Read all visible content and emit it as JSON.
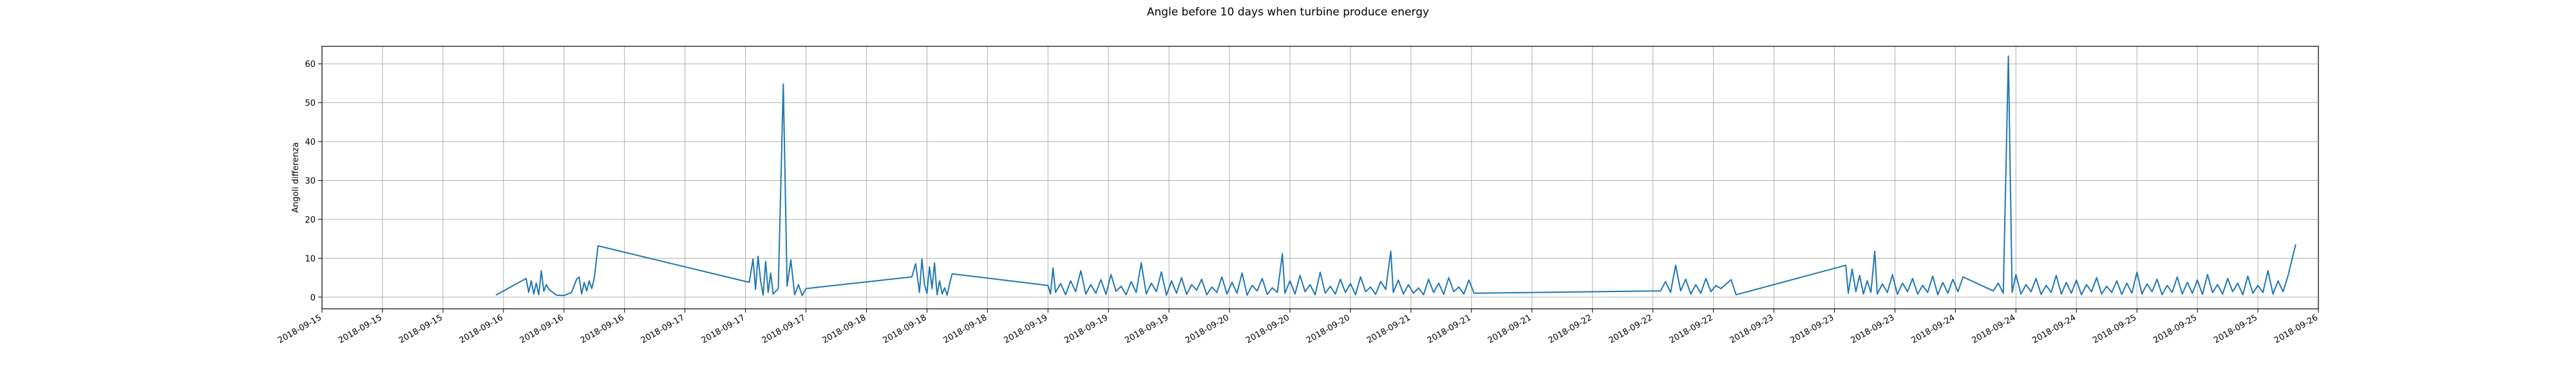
{
  "chart_data": {
    "type": "line",
    "title": "Angle before 10 days when turbine produce energy",
    "xlabel": "",
    "ylabel": "Angoli differenza",
    "ylim": [
      -3,
      64.5
    ],
    "yticks": [
      0,
      10,
      20,
      30,
      40,
      50,
      60
    ],
    "xlim": [
      "2018-09-15 00:00",
      "2018-09-26 00:00"
    ],
    "xtick_labels": [
      "2018-09-15",
      "2018-09-15",
      "2018-09-15",
      "2018-09-16",
      "2018-09-16",
      "2018-09-16",
      "2018-09-17",
      "2018-09-17",
      "2018-09-17",
      "2018-09-18",
      "2018-09-18",
      "2018-09-18",
      "2018-09-19",
      "2018-09-19",
      "2018-09-19",
      "2018-09-20",
      "2018-09-20",
      "2018-09-20",
      "2018-09-21",
      "2018-09-21",
      "2018-09-21",
      "2018-09-22",
      "2018-09-22",
      "2018-09-22",
      "2018-09-23",
      "2018-09-23",
      "2018-09-23",
      "2018-09-24",
      "2018-09-24",
      "2018-09-24",
      "2018-09-25",
      "2018-09-25",
      "2018-09-25",
      "2018-09-26"
    ],
    "grid": true,
    "line_color": "#1f77b4",
    "series": [
      {
        "name": "",
        "points": [
          [
            "2018-09-15 23:00",
            0.5
          ],
          [
            "2018-09-16 03:00",
            4.8
          ],
          [
            "2018-09-16 03:20",
            1.2
          ],
          [
            "2018-09-16 03:40",
            4.2
          ],
          [
            "2018-09-16 04:00",
            0.8
          ],
          [
            "2018-09-16 04:20",
            3.6
          ],
          [
            "2018-09-16 04:40",
            0.6
          ],
          [
            "2018-09-16 05:00",
            6.8
          ],
          [
            "2018-09-16 05:20",
            1.5
          ],
          [
            "2018-09-16 05:40",
            3.2
          ],
          [
            "2018-09-16 06:00",
            2.0
          ],
          [
            "2018-09-16 07:00",
            0.5
          ],
          [
            "2018-09-16 08:00",
            0.4
          ],
          [
            "2018-09-16 09:00",
            1.2
          ],
          [
            "2018-09-16 09:40",
            4.6
          ],
          [
            "2018-09-16 10:00",
            5.2
          ],
          [
            "2018-09-16 10:20",
            0.8
          ],
          [
            "2018-09-16 10:40",
            3.8
          ],
          [
            "2018-09-16 11:00",
            1.6
          ],
          [
            "2018-09-16 11:20",
            4.2
          ],
          [
            "2018-09-16 11:40",
            2.2
          ],
          [
            "2018-09-16 12:00",
            4.8
          ],
          [
            "2018-09-16 12:30",
            13.2
          ],
          [
            "2018-09-17 08:30",
            3.8
          ],
          [
            "2018-09-17 09:00",
            9.8
          ],
          [
            "2018-09-17 09:20",
            2.0
          ],
          [
            "2018-09-17 09:40",
            10.5
          ],
          [
            "2018-09-17 10:00",
            4.2
          ],
          [
            "2018-09-17 10:20",
            0.5
          ],
          [
            "2018-09-17 10:40",
            9.2
          ],
          [
            "2018-09-17 11:00",
            1.2
          ],
          [
            "2018-09-17 11:20",
            6.2
          ],
          [
            "2018-09-17 11:40",
            0.8
          ],
          [
            "2018-09-17 12:20",
            2.2
          ],
          [
            "2018-09-17 13:00",
            54.8
          ],
          [
            "2018-09-17 13:30",
            2.8
          ],
          [
            "2018-09-17 14:00",
            9.6
          ],
          [
            "2018-09-17 14:30",
            0.6
          ],
          [
            "2018-09-17 15:00",
            3.2
          ],
          [
            "2018-09-17 15:30",
            0.4
          ],
          [
            "2018-09-17 16:00",
            2.2
          ],
          [
            "2018-09-18 06:00",
            5.2
          ],
          [
            "2018-09-18 06:30",
            8.6
          ],
          [
            "2018-09-18 07:00",
            1.2
          ],
          [
            "2018-09-18 07:20",
            9.8
          ],
          [
            "2018-09-18 07:40",
            3.2
          ],
          [
            "2018-09-18 08:00",
            1.0
          ],
          [
            "2018-09-18 08:20",
            7.8
          ],
          [
            "2018-09-18 08:40",
            2.2
          ],
          [
            "2018-09-18 09:00",
            8.8
          ],
          [
            "2018-09-18 09:20",
            0.6
          ],
          [
            "2018-09-18 09:40",
            4.2
          ],
          [
            "2018-09-18 10:00",
            0.8
          ],
          [
            "2018-09-18 10:20",
            2.4
          ],
          [
            "2018-09-18 10:40",
            0.5
          ],
          [
            "2018-09-18 11:00",
            3.5
          ],
          [
            "2018-09-18 11:20",
            6.0
          ],
          [
            "2018-09-19 00:00",
            3.0
          ],
          [
            "2018-09-19 00:20",
            0.8
          ],
          [
            "2018-09-19 00:40",
            7.5
          ],
          [
            "2018-09-19 01:00",
            1.2
          ],
          [
            "2018-09-19 01:40",
            3.5
          ],
          [
            "2018-09-19 02:20",
            0.6
          ],
          [
            "2018-09-19 03:00",
            4.2
          ],
          [
            "2018-09-19 03:40",
            1.4
          ],
          [
            "2018-09-19 04:20",
            6.8
          ],
          [
            "2018-09-19 05:00",
            0.8
          ],
          [
            "2018-09-19 05:40",
            3.2
          ],
          [
            "2018-09-19 06:20",
            1.0
          ],
          [
            "2018-09-19 07:00",
            4.5
          ],
          [
            "2018-09-19 07:40",
            0.7
          ],
          [
            "2018-09-19 08:20",
            5.8
          ],
          [
            "2018-09-19 09:00",
            1.5
          ],
          [
            "2018-09-19 09:40",
            2.8
          ],
          [
            "2018-09-19 10:20",
            0.6
          ],
          [
            "2018-09-19 11:00",
            4.0
          ],
          [
            "2018-09-19 11:40",
            1.2
          ],
          [
            "2018-09-19 12:20",
            8.8
          ],
          [
            "2018-09-19 13:00",
            0.8
          ],
          [
            "2018-09-19 13:40",
            3.6
          ],
          [
            "2018-09-19 14:20",
            1.4
          ],
          [
            "2018-09-19 15:00",
            6.5
          ],
          [
            "2018-09-19 15:40",
            0.5
          ],
          [
            "2018-09-19 16:20",
            4.2
          ],
          [
            "2018-09-19 17:00",
            1.0
          ],
          [
            "2018-09-19 17:40",
            5.0
          ],
          [
            "2018-09-19 18:20",
            0.7
          ],
          [
            "2018-09-19 19:00",
            3.2
          ],
          [
            "2018-09-19 19:40",
            1.8
          ],
          [
            "2018-09-19 20:20",
            4.6
          ],
          [
            "2018-09-19 21:00",
            0.6
          ],
          [
            "2018-09-19 21:40",
            2.6
          ],
          [
            "2018-09-19 22:20",
            1.2
          ],
          [
            "2018-09-19 23:00",
            5.2
          ],
          [
            "2018-09-19 23:40",
            0.8
          ],
          [
            "2018-09-20 00:20",
            3.8
          ],
          [
            "2018-09-20 01:00",
            1.0
          ],
          [
            "2018-09-20 01:40",
            6.2
          ],
          [
            "2018-09-20 02:20",
            0.5
          ],
          [
            "2018-09-20 03:00",
            3.0
          ],
          [
            "2018-09-20 03:40",
            1.6
          ],
          [
            "2018-09-20 04:20",
            4.8
          ],
          [
            "2018-09-20 05:00",
            0.7
          ],
          [
            "2018-09-20 05:40",
            2.4
          ],
          [
            "2018-09-20 06:20",
            1.2
          ],
          [
            "2018-09-20 07:00",
            11.2
          ],
          [
            "2018-09-20 07:20",
            1.0
          ],
          [
            "2018-09-20 08:00",
            4.2
          ],
          [
            "2018-09-20 08:40",
            0.8
          ],
          [
            "2018-09-20 09:20",
            5.6
          ],
          [
            "2018-09-20 10:00",
            1.4
          ],
          [
            "2018-09-20 10:40",
            3.2
          ],
          [
            "2018-09-20 11:20",
            0.6
          ],
          [
            "2018-09-20 12:00",
            6.4
          ],
          [
            "2018-09-20 12:40",
            1.0
          ],
          [
            "2018-09-20 13:20",
            2.8
          ],
          [
            "2018-09-20 14:00",
            0.8
          ],
          [
            "2018-09-20 14:40",
            4.6
          ],
          [
            "2018-09-20 15:20",
            1.2
          ],
          [
            "2018-09-20 16:00",
            3.5
          ],
          [
            "2018-09-20 16:40",
            0.6
          ],
          [
            "2018-09-20 17:20",
            5.2
          ],
          [
            "2018-09-20 18:00",
            1.4
          ],
          [
            "2018-09-20 18:40",
            2.6
          ],
          [
            "2018-09-20 19:20",
            0.7
          ],
          [
            "2018-09-20 20:00",
            4.0
          ],
          [
            "2018-09-20 20:40",
            2.0
          ],
          [
            "2018-09-20 21:20",
            11.8
          ],
          [
            "2018-09-20 21:40",
            1.2
          ],
          [
            "2018-09-20 22:20",
            4.4
          ],
          [
            "2018-09-20 23:00",
            0.8
          ],
          [
            "2018-09-20 23:40",
            3.2
          ],
          [
            "2018-09-21 00:20",
            1.0
          ],
          [
            "2018-09-21 01:00",
            2.4
          ],
          [
            "2018-09-21 01:40",
            0.6
          ],
          [
            "2018-09-21 02:20",
            4.6
          ],
          [
            "2018-09-21 03:00",
            1.2
          ],
          [
            "2018-09-21 03:40",
            3.6
          ],
          [
            "2018-09-21 04:20",
            0.7
          ],
          [
            "2018-09-21 05:00",
            5.0
          ],
          [
            "2018-09-21 05:40",
            1.4
          ],
          [
            "2018-09-21 06:20",
            2.6
          ],
          [
            "2018-09-21 07:00",
            0.8
          ],
          [
            "2018-09-21 07:40",
            4.4
          ],
          [
            "2018-09-21 08:20",
            1.0
          ],
          [
            "2018-09-22 09:00",
            1.6
          ],
          [
            "2018-09-22 09:40",
            4.0
          ],
          [
            "2018-09-22 10:20",
            1.2
          ],
          [
            "2018-09-22 11:00",
            8.2
          ],
          [
            "2018-09-22 11:40",
            1.6
          ],
          [
            "2018-09-22 12:20",
            4.6
          ],
          [
            "2018-09-22 13:00",
            0.8
          ],
          [
            "2018-09-22 13:40",
            3.2
          ],
          [
            "2018-09-22 14:20",
            1.0
          ],
          [
            "2018-09-22 15:00",
            4.8
          ],
          [
            "2018-09-22 15:40",
            1.4
          ],
          [
            "2018-09-22 16:20",
            3.0
          ],
          [
            "2018-09-22 17:00",
            2.2
          ],
          [
            "2018-09-22 18:20",
            4.5
          ],
          [
            "2018-09-22 19:00",
            0.6
          ],
          [
            "2018-09-23 09:30",
            8.2
          ],
          [
            "2018-09-23 09:50",
            1.0
          ],
          [
            "2018-09-23 10:20",
            7.2
          ],
          [
            "2018-09-23 10:50",
            1.4
          ],
          [
            "2018-09-23 11:20",
            5.6
          ],
          [
            "2018-09-23 11:50",
            0.8
          ],
          [
            "2018-09-23 12:20",
            4.2
          ],
          [
            "2018-09-23 12:50",
            1.2
          ],
          [
            "2018-09-23 13:20",
            11.8
          ],
          [
            "2018-09-23 13:40",
            0.8
          ],
          [
            "2018-09-23 14:20",
            3.4
          ],
          [
            "2018-09-23 15:00",
            1.2
          ],
          [
            "2018-09-23 15:40",
            5.8
          ],
          [
            "2018-09-23 16:20",
            0.7
          ],
          [
            "2018-09-23 17:00",
            3.6
          ],
          [
            "2018-09-23 17:40",
            1.4
          ],
          [
            "2018-09-23 18:20",
            4.8
          ],
          [
            "2018-09-23 19:00",
            0.8
          ],
          [
            "2018-09-23 19:40",
            3.0
          ],
          [
            "2018-09-23 20:20",
            1.2
          ],
          [
            "2018-09-23 21:00",
            5.4
          ],
          [
            "2018-09-23 21:40",
            0.6
          ],
          [
            "2018-09-23 22:20",
            3.8
          ],
          [
            "2018-09-23 23:00",
            1.0
          ],
          [
            "2018-09-23 23:40",
            4.6
          ],
          [
            "2018-09-24 00:20",
            1.4
          ],
          [
            "2018-09-24 01:00",
            5.2
          ],
          [
            "2018-09-24 05:00",
            1.6
          ],
          [
            "2018-09-24 05:40",
            3.6
          ],
          [
            "2018-09-24 06:20",
            1.0
          ],
          [
            "2018-09-24 07:00",
            62.0
          ],
          [
            "2018-09-24 07:30",
            1.2
          ],
          [
            "2018-09-24 08:00",
            5.8
          ],
          [
            "2018-09-24 08:40",
            0.8
          ],
          [
            "2018-09-24 09:20",
            3.2
          ],
          [
            "2018-09-24 10:00",
            1.4
          ],
          [
            "2018-09-24 10:40",
            4.8
          ],
          [
            "2018-09-24 11:20",
            0.7
          ],
          [
            "2018-09-24 12:00",
            3.0
          ],
          [
            "2018-09-24 12:40",
            1.2
          ],
          [
            "2018-09-24 13:20",
            5.6
          ],
          [
            "2018-09-24 14:00",
            0.8
          ],
          [
            "2018-09-24 14:40",
            3.8
          ],
          [
            "2018-09-24 15:20",
            1.0
          ],
          [
            "2018-09-24 16:00",
            4.4
          ],
          [
            "2018-09-24 16:40",
            0.6
          ],
          [
            "2018-09-24 17:20",
            3.2
          ],
          [
            "2018-09-24 18:00",
            1.4
          ],
          [
            "2018-09-24 18:40",
            5.0
          ],
          [
            "2018-09-24 19:20",
            0.8
          ],
          [
            "2018-09-24 20:00",
            2.8
          ],
          [
            "2018-09-24 20:40",
            1.2
          ],
          [
            "2018-09-24 21:20",
            4.2
          ],
          [
            "2018-09-24 22:00",
            0.7
          ],
          [
            "2018-09-24 22:40",
            3.6
          ],
          [
            "2018-09-24 23:20",
            1.0
          ],
          [
            "2018-09-25 00:00",
            6.4
          ],
          [
            "2018-09-25 00:40",
            0.8
          ],
          [
            "2018-09-25 01:20",
            3.4
          ],
          [
            "2018-09-25 02:00",
            1.4
          ],
          [
            "2018-09-25 02:40",
            4.6
          ],
          [
            "2018-09-25 03:20",
            0.6
          ],
          [
            "2018-09-25 04:00",
            3.0
          ],
          [
            "2018-09-25 04:40",
            1.2
          ],
          [
            "2018-09-25 05:20",
            5.2
          ],
          [
            "2018-09-25 06:00",
            0.8
          ],
          [
            "2018-09-25 06:40",
            3.8
          ],
          [
            "2018-09-25 07:20",
            1.0
          ],
          [
            "2018-09-25 08:00",
            4.4
          ],
          [
            "2018-09-25 08:40",
            0.7
          ],
          [
            "2018-09-25 09:20",
            5.8
          ],
          [
            "2018-09-25 10:00",
            1.2
          ],
          [
            "2018-09-25 10:40",
            3.2
          ],
          [
            "2018-09-25 11:20",
            0.8
          ],
          [
            "2018-09-25 12:00",
            4.8
          ],
          [
            "2018-09-25 12:40",
            1.4
          ],
          [
            "2018-09-25 13:20",
            3.6
          ],
          [
            "2018-09-25 14:00",
            0.6
          ],
          [
            "2018-09-25 14:40",
            5.4
          ],
          [
            "2018-09-25 15:20",
            1.0
          ],
          [
            "2018-09-25 16:00",
            3.0
          ],
          [
            "2018-09-25 16:40",
            1.2
          ],
          [
            "2018-09-25 17:20",
            6.8
          ],
          [
            "2018-09-25 18:00",
            0.8
          ],
          [
            "2018-09-25 18:40",
            4.2
          ],
          [
            "2018-09-25 19:20",
            1.4
          ],
          [
            "2018-09-25 20:00",
            5.6
          ],
          [
            "2018-09-25 21:00",
            13.6
          ]
        ]
      }
    ]
  }
}
